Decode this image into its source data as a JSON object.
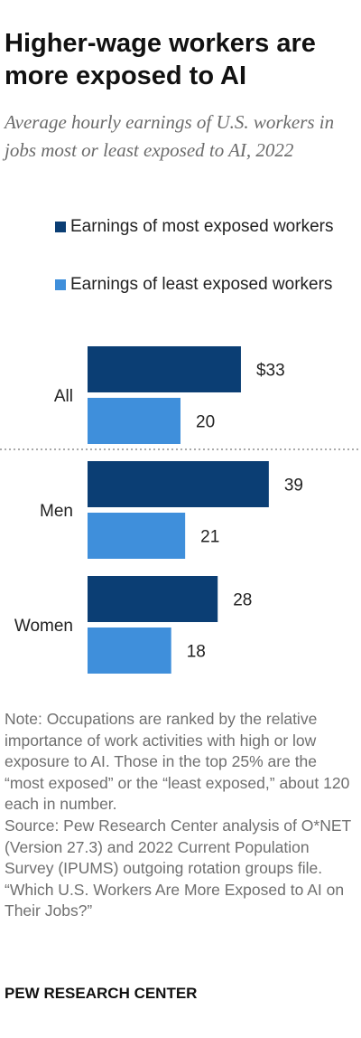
{
  "title": "Higher-wage workers are more exposed to AI",
  "subtitle": "Average hourly earnings of U.S. workers in jobs most or least exposed to AI, 2022",
  "colors": {
    "most_exposed": "#0b3e74",
    "least_exposed": "#3f8fdb",
    "divider": "#aaaaaa"
  },
  "legend": [
    {
      "label": "Earnings of most exposed workers",
      "color": "#0b3e74"
    },
    {
      "label": "Earnings of least exposed workers",
      "color": "#3f8fdb"
    }
  ],
  "chart_data": {
    "type": "bar",
    "orientation": "horizontal",
    "categories": [
      "All",
      "Men",
      "Women"
    ],
    "series": [
      {
        "name": "Earnings of most exposed workers",
        "values": [
          33,
          39,
          28
        ],
        "labels": [
          "$33",
          "39",
          "28"
        ]
      },
      {
        "name": "Earnings of least exposed workers",
        "values": [
          20,
          21,
          18
        ],
        "labels": [
          "20",
          "21",
          "18"
        ]
      }
    ],
    "xlim": [
      0,
      52
    ],
    "grid": false,
    "legend_position": "top",
    "divider_after": "All",
    "title": "",
    "xlabel": "",
    "ylabel": ""
  },
  "note": [
    "Note: Occupations are ranked by the relative importance of work activities with high or low exposure to AI. Those in the top 25% are the “most exposed” or the “least exposed,” about 120 each in number.",
    "Source: Pew Research Center analysis of O*NET (Version 27.3) and 2022 Current Population Survey (IPUMS) outgoing rotation groups file.",
    "“Which U.S. Workers Are More Exposed to AI on Their Jobs?”"
  ],
  "footer": "PEW RESEARCH CENTER"
}
